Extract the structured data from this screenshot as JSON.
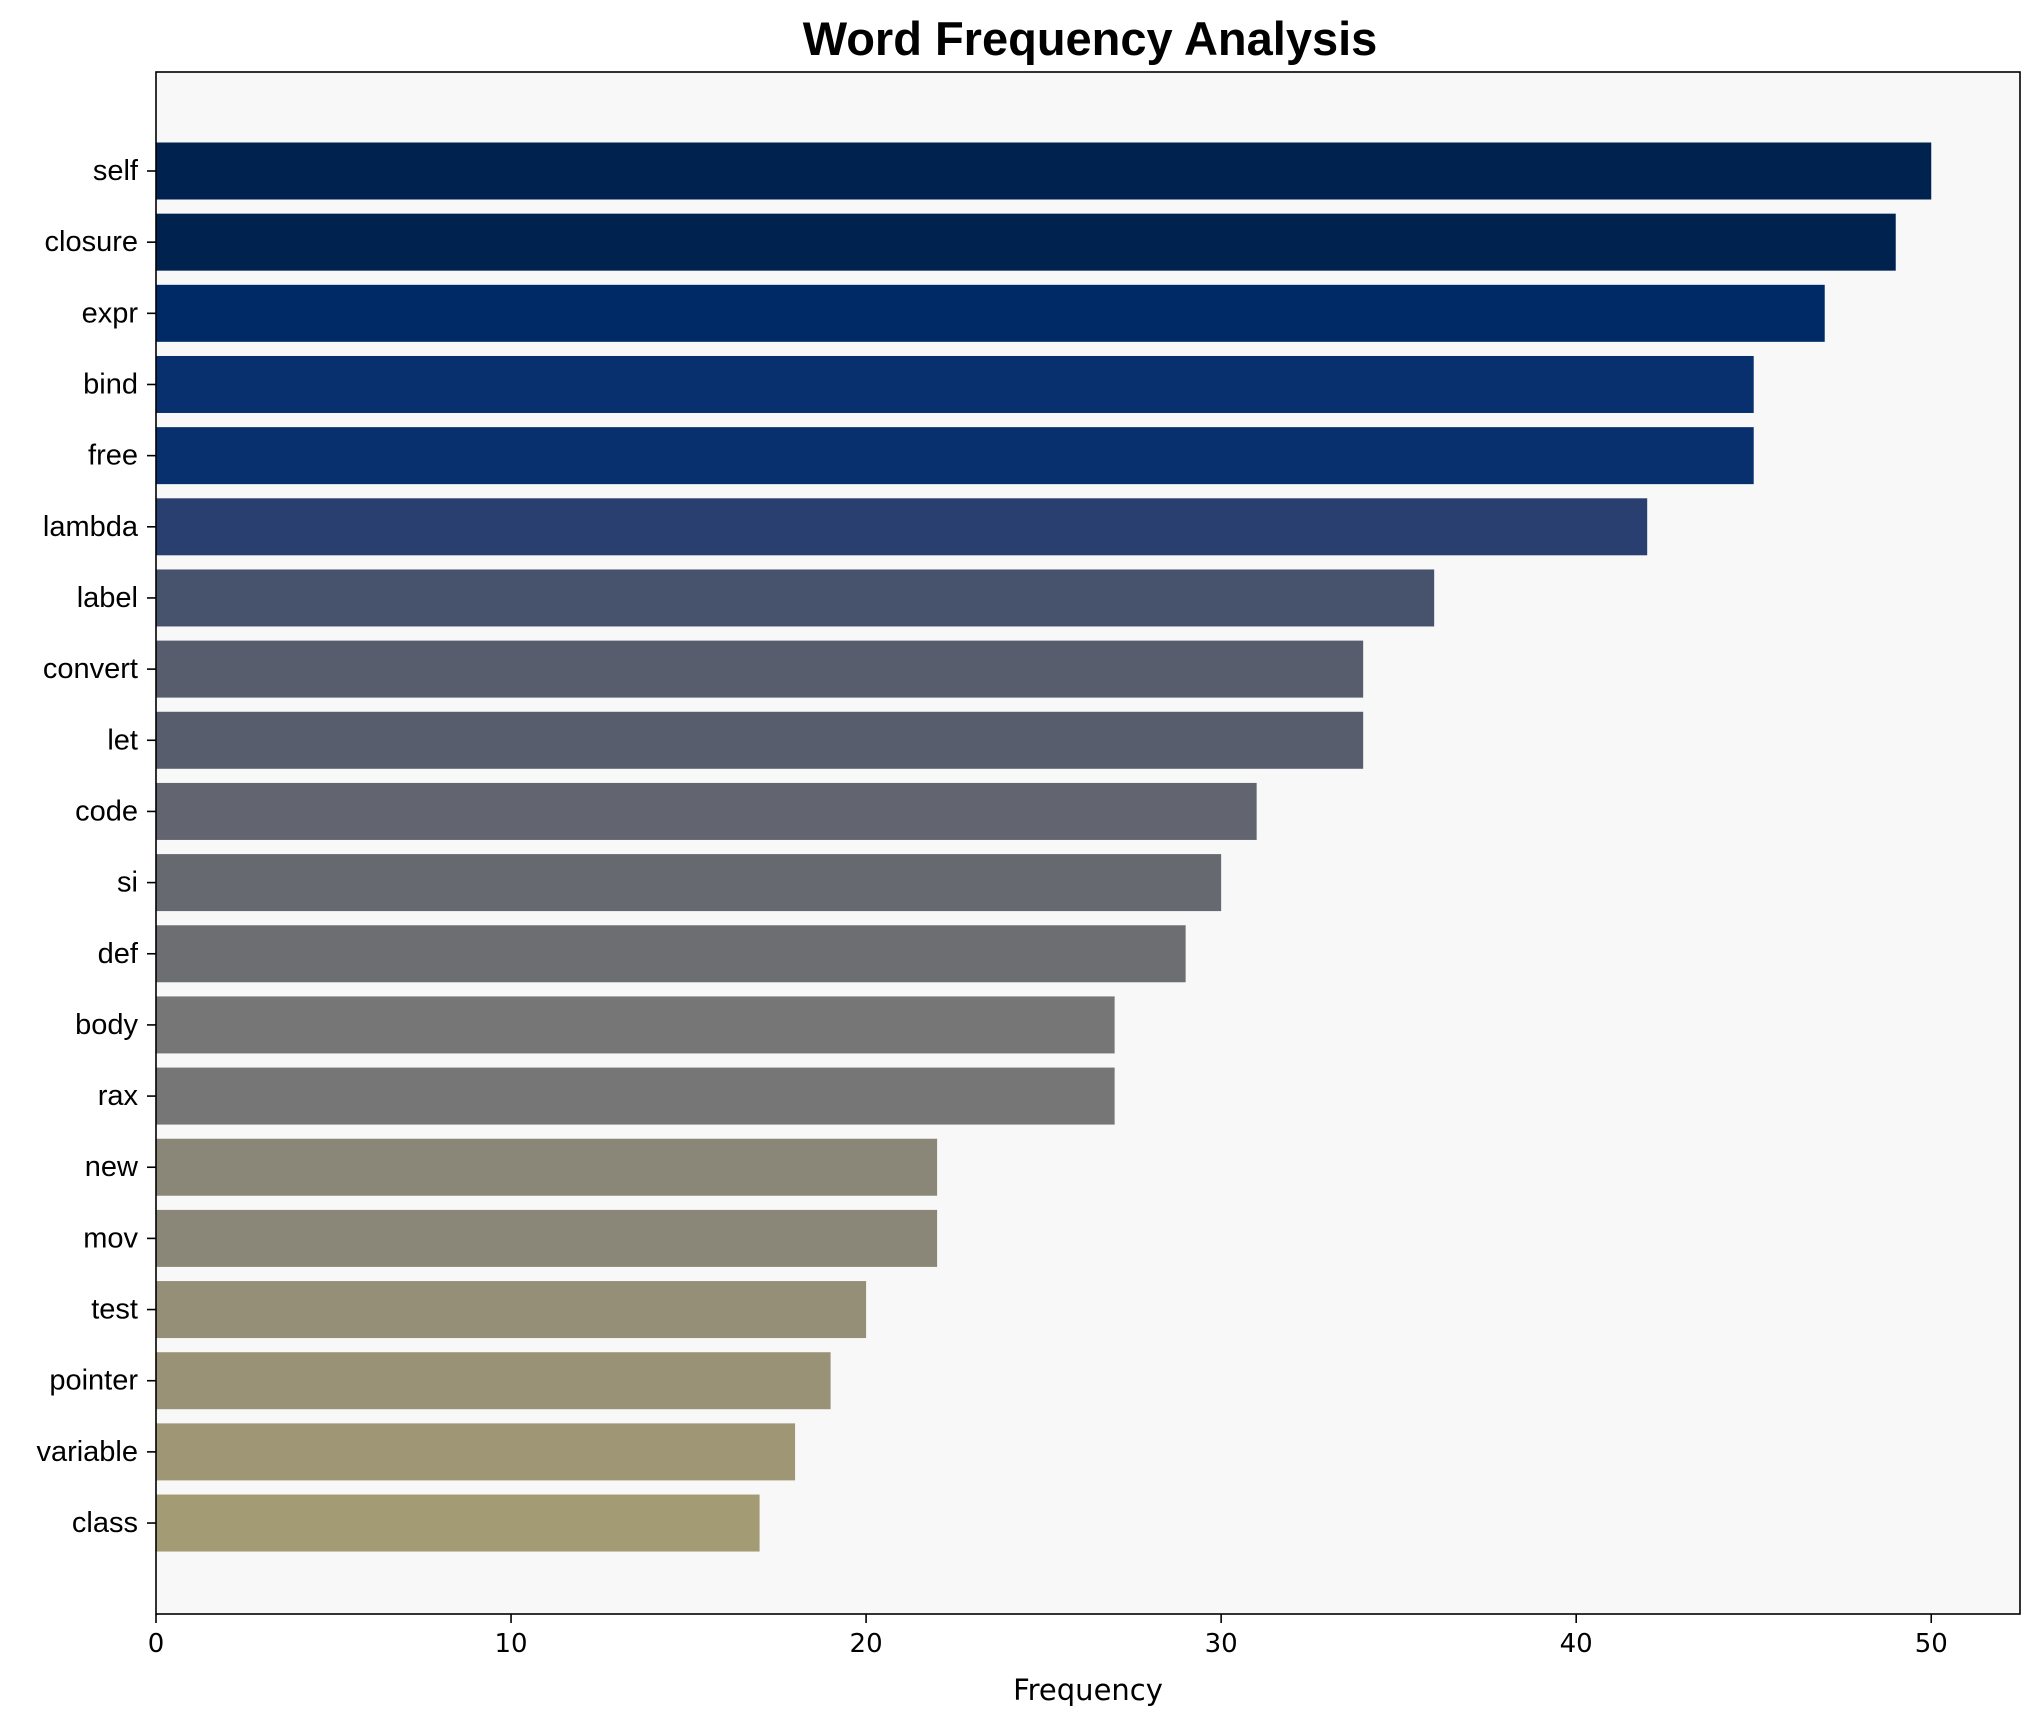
{
  "chart_data": {
    "type": "bar",
    "orientation": "horizontal",
    "title": "Word Frequency Analysis",
    "xlabel": "Frequency",
    "ylabel": "",
    "xlim": [
      0,
      52.5
    ],
    "xticks": [
      0,
      10,
      20,
      30,
      40,
      50
    ],
    "grid": false,
    "background": "#f8f8f8",
    "categories": [
      "self",
      "closure",
      "expr",
      "bind",
      "free",
      "lambda",
      "label",
      "convert",
      "let",
      "code",
      "si",
      "def",
      "body",
      "rax",
      "new",
      "mov",
      "test",
      "pointer",
      "variable",
      "class"
    ],
    "values": [
      50,
      49,
      47,
      45,
      45,
      42,
      36,
      34,
      34,
      31,
      30,
      29,
      27,
      27,
      22,
      22,
      20,
      19,
      18,
      17
    ],
    "colors": [
      "#00224e",
      "#00224e",
      "#002a66",
      "#08306f",
      "#08306f",
      "#283f6f",
      "#47526c",
      "#575d6d",
      "#575d6d",
      "#62646f",
      "#666970",
      "#6c6e72",
      "#767676",
      "#767676",
      "#8a8778",
      "#8a8778",
      "#958f78",
      "#9a9277",
      "#9f9676",
      "#a39b73"
    ]
  }
}
